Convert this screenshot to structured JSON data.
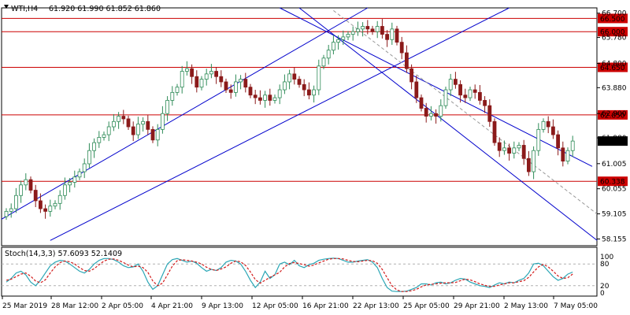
{
  "header": {
    "symbol": "WTI,H4",
    "ohlc": "61.920 61.990 61.852 61.860"
  },
  "stoch": {
    "label": "Stoch(14,3,3) 57.6093 52.1409",
    "levels": [
      "100",
      "80",
      "20",
      "0"
    ]
  },
  "colors": {
    "background": "#ffffff",
    "bull_candle": "#2e8b57",
    "bear_candle": "#8b1a1a",
    "horizontal_levels": "#cc0000",
    "channel_lines": "#0000cc",
    "midline": "#999999",
    "stoch_main": "#2aa6b5",
    "stoch_signal": "#d21a1a",
    "current_price_tag": "#000000"
  },
  "chart_data": {
    "type": "candlestick",
    "symbol": "WTI",
    "timeframe": "H4",
    "ylim": [
      57.9,
      66.9
    ],
    "yticks": [
      {
        "value": 66.7,
        "label": "66.700"
      },
      {
        "value": 65.78,
        "label": "65.780"
      },
      {
        "value": 64.8,
        "label": "64.800"
      },
      {
        "value": 63.88,
        "label": "63.880"
      },
      {
        "value": 62.9,
        "label": "62.900"
      },
      {
        "value": 61.98,
        "label": "61.980"
      },
      {
        "value": 61.005,
        "label": "61.005"
      },
      {
        "value": 60.055,
        "label": "60.055"
      },
      {
        "value": 59.105,
        "label": "59.105"
      },
      {
        "value": 58.155,
        "label": "58.155"
      }
    ],
    "xticks": [
      "25 Mar 2019",
      "28 Mar 12:00",
      "2 Apr 05:00",
      "4 Apr 21:00",
      "9 Apr 13:00",
      "12 Apr 05:00",
      "16 Apr 21:00",
      "22 Apr 13:00",
      "25 Apr 05:00",
      "29 Apr 21:00",
      "2 May 13:00",
      "7 May 05:00"
    ],
    "levels": [
      {
        "value": 66.5,
        "label": "66.500"
      },
      {
        "value": 66.0,
        "label": "66.000"
      },
      {
        "value": 64.65,
        "label": "64.650"
      },
      {
        "value": 62.85,
        "label": "62.850"
      },
      {
        "value": 60.338,
        "label": "60.338"
      }
    ],
    "current_price": {
      "value": 61.86,
      "label": "61.860"
    },
    "close": [
      59.2,
      59.3,
      59.8,
      60.2,
      60.4,
      60.0,
      59.6,
      59.3,
      59.2,
      59.4,
      59.5,
      59.8,
      60.2,
      60.3,
      60.5,
      60.7,
      61.0,
      61.5,
      61.8,
      62.0,
      62.1,
      62.4,
      62.6,
      62.8,
      62.7,
      62.4,
      62.1,
      62.5,
      62.6,
      62.3,
      61.9,
      62.3,
      62.9,
      63.4,
      63.7,
      63.9,
      64.5,
      64.6,
      64.3,
      63.9,
      64.2,
      64.4,
      64.5,
      64.3,
      64.1,
      63.8,
      63.7,
      64.1,
      64.2,
      63.9,
      63.6,
      63.5,
      63.4,
      63.6,
      63.4,
      63.5,
      63.8,
      64.1,
      64.4,
      64.2,
      64.0,
      63.8,
      63.6,
      63.8,
      64.7,
      65.0,
      65.3,
      65.6,
      65.7,
      65.8,
      65.9,
      66.0,
      66.1,
      66.2,
      66.1,
      66.0,
      66.2,
      65.9,
      65.7,
      66.1,
      65.6,
      65.2,
      64.6,
      64.1,
      63.5,
      63.1,
      62.8,
      62.9,
      62.8,
      63.2,
      63.8,
      64.2,
      64.0,
      63.6,
      63.5,
      63.8,
      63.7,
      63.4,
      63.2,
      62.6,
      61.8,
      61.5,
      61.6,
      61.4,
      61.6,
      61.7,
      61.2,
      60.7,
      61.5,
      62.3,
      62.6,
      62.4,
      62.1,
      61.6,
      61.1,
      61.5,
      61.86
    ],
    "stoch_k": [
      30,
      40,
      55,
      60,
      50,
      30,
      20,
      35,
      55,
      75,
      85,
      90,
      88,
      80,
      70,
      60,
      55,
      65,
      80,
      90,
      95,
      95,
      92,
      85,
      75,
      70,
      72,
      80,
      60,
      30,
      10,
      20,
      50,
      80,
      92,
      95,
      90,
      85,
      88,
      82,
      70,
      60,
      65,
      62,
      70,
      85,
      90,
      88,
      80,
      60,
      35,
      15,
      30,
      60,
      40,
      50,
      80,
      85,
      78,
      90,
      75,
      70,
      78,
      82,
      90,
      93,
      95,
      96,
      95,
      90,
      85,
      85,
      88,
      90,
      92,
      85,
      70,
      40,
      15,
      5,
      4,
      4,
      5,
      10,
      15,
      25,
      25,
      22,
      28,
      30,
      25,
      28,
      35,
      40,
      38,
      30,
      25,
      20,
      18,
      15,
      22,
      28,
      25,
      30,
      28,
      35,
      40,
      55,
      80,
      82,
      75,
      60,
      45,
      35,
      40,
      52,
      57.6
    ],
    "stoch_d": [
      35,
      38,
      45,
      52,
      55,
      46,
      33,
      28,
      36,
      55,
      72,
      84,
      88,
      86,
      80,
      70,
      62,
      60,
      67,
      78,
      88,
      93,
      94,
      90,
      84,
      77,
      72,
      74,
      70,
      57,
      33,
      20,
      27,
      50,
      74,
      89,
      92,
      90,
      88,
      85,
      80,
      71,
      65,
      62,
      66,
      72,
      82,
      88,
      86,
      76,
      58,
      37,
      27,
      35,
      43,
      50,
      57,
      72,
      81,
      84,
      81,
      78,
      74,
      77,
      83,
      88,
      93,
      95,
      95,
      94,
      90,
      87,
      86,
      88,
      90,
      89,
      82,
      65,
      42,
      20,
      8,
      4,
      4,
      6,
      10,
      17,
      22,
      24,
      25,
      27,
      28,
      28,
      29,
      34,
      38,
      36,
      31,
      25,
      21,
      18,
      18,
      22,
      25,
      28,
      28,
      31,
      34,
      43,
      58,
      72,
      79,
      72,
      60,
      47,
      40,
      42,
      52.1
    ]
  }
}
